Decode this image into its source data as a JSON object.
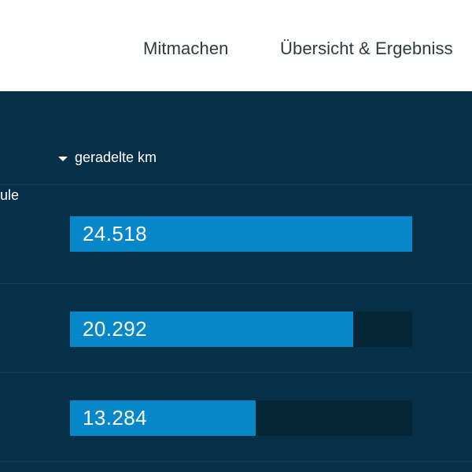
{
  "nav": {
    "items": [
      {
        "label": "Mitmachen"
      },
      {
        "label": "Übersicht & Ergebniss"
      }
    ]
  },
  "table": {
    "sort_column_label": "geradelte km",
    "first_row_name_fragment": "ule",
    "rows": [
      {
        "value_label": "24.518",
        "value": 24518
      },
      {
        "value_label": "20.292",
        "value": 20292
      },
      {
        "value_label": "13.284",
        "value": 13284
      }
    ],
    "max_value": 24518
  },
  "colors": {
    "bar_fill": "#0687c9",
    "bar_track": "#052637",
    "panel_bg": "#063048"
  }
}
